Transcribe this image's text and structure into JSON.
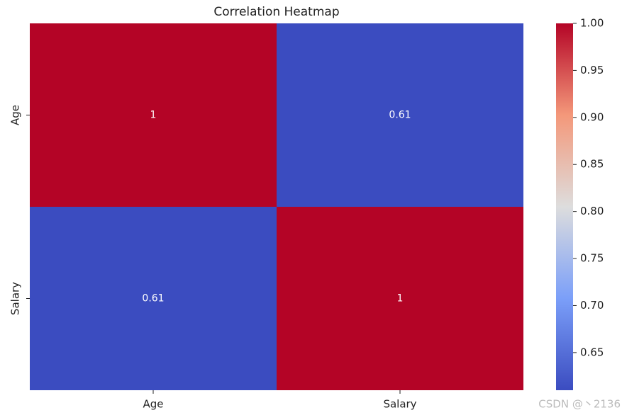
{
  "chart_data": {
    "type": "heatmap",
    "title": "Correlation Heatmap",
    "x_categories": [
      "Age",
      "Salary"
    ],
    "y_categories": [
      "Age",
      "Salary"
    ],
    "values": [
      [
        1,
        0.61
      ],
      [
        0.61,
        1
      ]
    ],
    "colormap": "coolwarm",
    "clim": [
      0.61,
      1
    ],
    "cticks": [
      0.65,
      {
        "value": 0.7,
        "label": "0.70"
      },
      0.75,
      {
        "value": 0.8,
        "label": "0.80"
      },
      0.85,
      {
        "value": 0.9,
        "label": "0.90"
      },
      0.95,
      {
        "value": 1,
        "label": "1.00"
      }
    ],
    "watermark": "CSDN @丶2136"
  }
}
